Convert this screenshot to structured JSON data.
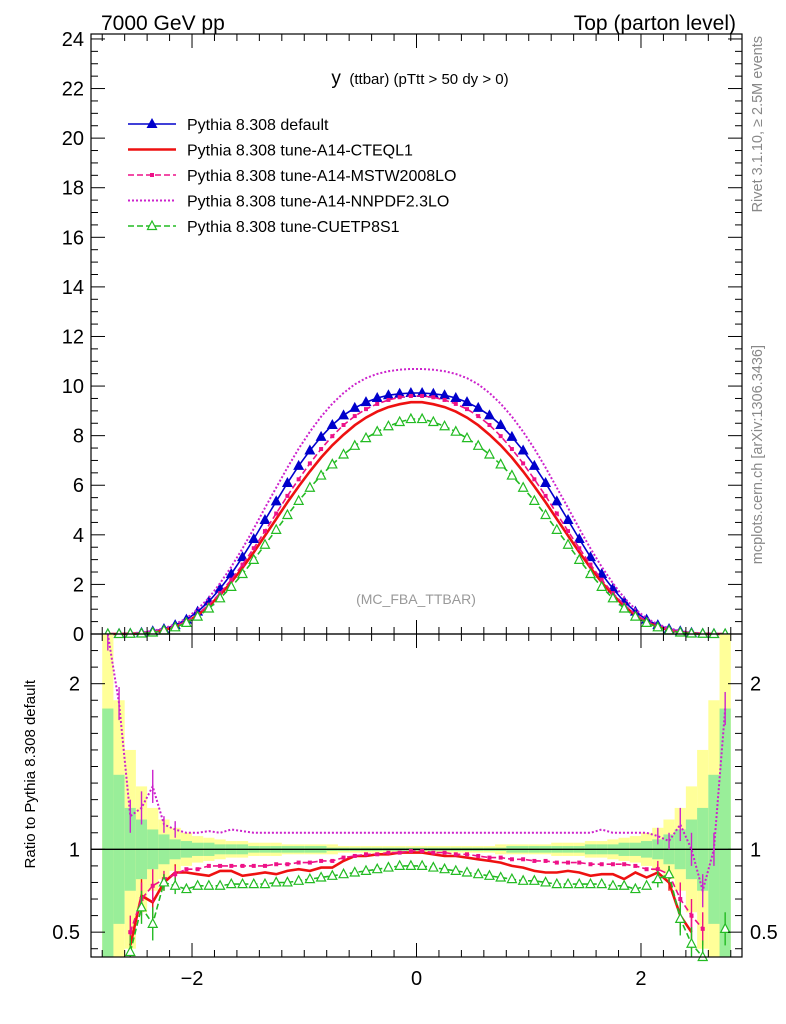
{
  "header": {
    "left": "7000 GeV pp",
    "right": "Top (parton level)"
  },
  "side_labels": {
    "rivet": "Rivet 3.1.10, ≥ 2.5M events",
    "mcplots": "mcplots.cern.ch [arXiv:1306.3436]"
  },
  "chart_data": [
    {
      "type": "line",
      "title": "y (ttbar) (pTtt > 50 dy > 0)",
      "title_main": "y",
      "title_sub": "(ttbar) (pTtt > 50 dy > 0)",
      "watermark": "(MC_FBA_TTBAR)",
      "xlim": [
        -2.9,
        2.9
      ],
      "ylim": [
        0,
        24.2
      ],
      "yticks": [
        0,
        2,
        4,
        6,
        8,
        10,
        12,
        14,
        16,
        18,
        20,
        22,
        24
      ],
      "legend_position": "top-left",
      "x": [
        -2.75,
        -2.65,
        -2.55,
        -2.45,
        -2.35,
        -2.25,
        -2.15,
        -2.05,
        -1.95,
        -1.85,
        -1.75,
        -1.65,
        -1.55,
        -1.45,
        -1.35,
        -1.25,
        -1.15,
        -1.05,
        -0.95,
        -0.85,
        -0.75,
        -0.65,
        -0.55,
        -0.45,
        -0.35,
        -0.25,
        -0.15,
        -0.05,
        0.05,
        0.15,
        0.25,
        0.35,
        0.45,
        0.55,
        0.65,
        0.75,
        0.85,
        0.95,
        1.05,
        1.15,
        1.25,
        1.35,
        1.45,
        1.55,
        1.65,
        1.75,
        1.85,
        1.95,
        2.05,
        2.15,
        2.25,
        2.35,
        2.45,
        2.55,
        2.65,
        2.75
      ],
      "series": [
        {
          "name": "Pythia 8.308 default",
          "color": "#0000cc",
          "style": "solid-triangle",
          "values": [
            0.0,
            0.01,
            0.02,
            0.05,
            0.11,
            0.2,
            0.36,
            0.58,
            0.9,
            1.31,
            1.83,
            2.42,
            3.1,
            3.83,
            4.6,
            5.35,
            6.09,
            6.78,
            7.4,
            7.95,
            8.43,
            8.82,
            9.12,
            9.35,
            9.52,
            9.63,
            9.69,
            9.72,
            9.72,
            9.69,
            9.63,
            9.52,
            9.35,
            9.12,
            8.82,
            8.43,
            7.95,
            7.4,
            6.78,
            6.09,
            5.35,
            4.6,
            3.83,
            3.1,
            2.42,
            1.83,
            1.31,
            0.9,
            0.58,
            0.36,
            0.2,
            0.11,
            0.05,
            0.02,
            0.01,
            0.0
          ]
        },
        {
          "name": "Pythia 8.308 tune-A14-CTEQL1",
          "color": "#ee1111",
          "style": "solid",
          "values": [
            0.0,
            0.0,
            0.01,
            0.03,
            0.07,
            0.16,
            0.29,
            0.48,
            0.76,
            1.13,
            1.58,
            2.09,
            2.67,
            3.3,
            3.97,
            4.64,
            5.31,
            5.95,
            6.56,
            7.12,
            7.61,
            8.04,
            8.42,
            8.73,
            8.97,
            9.15,
            9.27,
            9.35,
            9.35,
            9.27,
            9.15,
            8.97,
            8.73,
            8.42,
            8.04,
            7.61,
            7.12,
            6.56,
            5.95,
            5.31,
            4.64,
            3.97,
            3.3,
            2.67,
            2.09,
            1.58,
            1.13,
            0.76,
            0.48,
            0.29,
            0.16,
            0.07,
            0.03,
            0.01,
            0.0,
            0.0
          ]
        },
        {
          "name": "Pythia 8.308 tune-A14-MSTW2008LO",
          "color": "#ee1188",
          "style": "dashed-square",
          "values": [
            0.0,
            0.0,
            0.01,
            0.03,
            0.08,
            0.16,
            0.31,
            0.51,
            0.8,
            1.18,
            1.65,
            2.19,
            2.8,
            3.46,
            4.15,
            4.86,
            5.57,
            6.24,
            6.88,
            7.46,
            7.98,
            8.43,
            8.79,
            9.07,
            9.28,
            9.44,
            9.55,
            9.6,
            9.6,
            9.55,
            9.44,
            9.28,
            9.07,
            8.79,
            8.43,
            7.98,
            7.46,
            6.88,
            6.24,
            5.57,
            4.86,
            4.15,
            3.46,
            2.8,
            2.19,
            1.65,
            1.18,
            0.8,
            0.51,
            0.31,
            0.16,
            0.08,
            0.03,
            0.01,
            0.0,
            0.0
          ]
        },
        {
          "name": "Pythia 8.308 tune-A14-NNPDF2.3LO",
          "color": "#cc22cc",
          "style": "dotted",
          "values": [
            0.0,
            0.02,
            0.03,
            0.06,
            0.13,
            0.23,
            0.4,
            0.63,
            1.0,
            1.46,
            2.05,
            2.71,
            3.45,
            4.25,
            5.09,
            5.9,
            6.71,
            7.47,
            8.16,
            8.77,
            9.29,
            9.72,
            10.07,
            10.32,
            10.49,
            10.6,
            10.66,
            10.69,
            10.69,
            10.66,
            10.6,
            10.49,
            10.32,
            10.07,
            9.72,
            9.29,
            8.77,
            8.16,
            7.47,
            6.71,
            5.9,
            5.09,
            4.25,
            3.45,
            2.71,
            2.05,
            1.46,
            1.0,
            0.63,
            0.4,
            0.23,
            0.13,
            0.06,
            0.03,
            0.02,
            0.0
          ]
        },
        {
          "name": "Pythia 8.308 tune-CUETP8S1",
          "color": "#22bb22",
          "style": "dashed-open-triangle",
          "values": [
            0.0,
            0.0,
            0.01,
            0.02,
            0.06,
            0.14,
            0.27,
            0.45,
            0.7,
            1.03,
            1.44,
            1.9,
            2.42,
            2.99,
            3.6,
            4.2,
            4.8,
            5.37,
            5.9,
            6.39,
            6.84,
            7.24,
            7.59,
            7.9,
            8.16,
            8.38,
            8.55,
            8.67,
            8.67,
            8.55,
            8.38,
            8.16,
            7.9,
            7.59,
            7.24,
            6.84,
            6.39,
            5.9,
            5.37,
            4.8,
            4.2,
            3.6,
            2.99,
            2.42,
            1.9,
            1.44,
            1.03,
            0.7,
            0.45,
            0.27,
            0.14,
            0.06,
            0.02,
            0.01,
            0.0,
            0.0
          ]
        }
      ]
    },
    {
      "type": "line",
      "ylabel": "Ratio to Pythia 8.308 default",
      "xlim": [
        -2.9,
        2.9
      ],
      "ylim": [
        0.35,
        2.3
      ],
      "xticks": [
        -2,
        0,
        2
      ],
      "yticks": [
        0.5,
        1,
        2
      ],
      "x": [
        -2.75,
        -2.65,
        -2.55,
        -2.45,
        -2.35,
        -2.25,
        -2.15,
        -2.05,
        -1.95,
        -1.85,
        -1.75,
        -1.65,
        -1.55,
        -1.45,
        -1.35,
        -1.25,
        -1.15,
        -1.05,
        -0.95,
        -0.85,
        -0.75,
        -0.65,
        -0.55,
        -0.45,
        -0.35,
        -0.25,
        -0.15,
        -0.05,
        0.05,
        0.15,
        0.25,
        0.35,
        0.45,
        0.55,
        0.65,
        0.75,
        0.85,
        0.95,
        1.05,
        1.15,
        1.25,
        1.35,
        1.45,
        1.55,
        1.65,
        1.75,
        1.85,
        1.95,
        2.05,
        2.15,
        2.25,
        2.35,
        2.45,
        2.55,
        2.65,
        2.75
      ],
      "band_inner": [
        1.85,
        1.45,
        1.25,
        1.18,
        1.12,
        1.09,
        1.06,
        1.05,
        1.04,
        1.04,
        1.03,
        1.03,
        1.03,
        1.02,
        1.02,
        1.02,
        1.02,
        1.02,
        1.02,
        1.02,
        1.01,
        1.01,
        1.01,
        1.01,
        1.01,
        1.01,
        1.01,
        1.01,
        1.01,
        1.01,
        1.01,
        1.01,
        1.01,
        1.01,
        1.01,
        1.01,
        1.02,
        1.02,
        1.02,
        1.02,
        1.02,
        1.02,
        1.02,
        1.03,
        1.03,
        1.03,
        1.04,
        1.04,
        1.05,
        1.06,
        1.09,
        1.12,
        1.18,
        1.25,
        1.45,
        1.85
      ],
      "band_outer": [
        2.3,
        1.9,
        1.6,
        1.38,
        1.25,
        1.18,
        1.13,
        1.1,
        1.08,
        1.07,
        1.06,
        1.05,
        1.05,
        1.04,
        1.04,
        1.04,
        1.03,
        1.03,
        1.03,
        1.03,
        1.03,
        1.02,
        1.02,
        1.02,
        1.02,
        1.02,
        1.02,
        1.02,
        1.02,
        1.02,
        1.02,
        1.02,
        1.02,
        1.02,
        1.02,
        1.03,
        1.03,
        1.03,
        1.03,
        1.03,
        1.04,
        1.04,
        1.04,
        1.05,
        1.05,
        1.06,
        1.07,
        1.08,
        1.1,
        1.13,
        1.18,
        1.25,
        1.38,
        1.6,
        1.9,
        2.3
      ],
      "series": [
        {
          "name": "Pythia 8.308 tune-A14-CTEQL1",
          "color": "#ee1111",
          "values": [
            null,
            null,
            0.42,
            0.72,
            0.68,
            0.8,
            0.86,
            0.86,
            0.85,
            0.84,
            0.87,
            0.87,
            0.84,
            0.85,
            0.86,
            0.85,
            0.87,
            0.88,
            0.87,
            0.89,
            0.89,
            0.93,
            0.96,
            0.96,
            0.97,
            0.97,
            0.98,
            0.98,
            0.98,
            0.97,
            0.96,
            0.96,
            0.95,
            0.94,
            0.93,
            0.92,
            0.9,
            0.89,
            0.87,
            0.86,
            0.86,
            0.87,
            0.86,
            0.84,
            0.85,
            0.85,
            0.82,
            0.86,
            0.83,
            0.86,
            0.8,
            0.6,
            0.5,
            null,
            null,
            null
          ]
        },
        {
          "name": "Pythia 8.308 tune-A14-MSTW2008LO",
          "color": "#ee1188",
          "values": [
            null,
            null,
            0.5,
            0.7,
            0.78,
            0.82,
            0.85,
            0.88,
            0.88,
            0.9,
            0.9,
            0.9,
            0.9,
            0.9,
            0.9,
            0.91,
            0.91,
            0.92,
            0.92,
            0.93,
            0.93,
            0.95,
            0.96,
            0.97,
            0.97,
            0.98,
            0.98,
            0.99,
            0.99,
            0.98,
            0.98,
            0.97,
            0.97,
            0.96,
            0.95,
            0.95,
            0.94,
            0.94,
            0.93,
            0.93,
            0.92,
            0.92,
            0.92,
            0.91,
            0.91,
            0.91,
            0.91,
            0.9,
            0.88,
            0.88,
            0.85,
            0.7,
            0.6,
            0.52,
            null,
            null
          ]
        },
        {
          "name": "Pythia 8.308 tune-A14-NNPDF2.3LO",
          "color": "#cc22cc",
          "values": [
            2.3,
            1.88,
            1.2,
            1.25,
            1.38,
            1.15,
            1.12,
            1.1,
            1.1,
            1.11,
            1.1,
            1.12,
            1.11,
            1.1,
            1.1,
            1.1,
            1.1,
            1.1,
            1.1,
            1.1,
            1.1,
            1.1,
            1.1,
            1.1,
            1.1,
            1.1,
            1.1,
            1.1,
            1.1,
            1.1,
            1.1,
            1.1,
            1.1,
            1.1,
            1.1,
            1.1,
            1.1,
            1.1,
            1.1,
            1.1,
            1.1,
            1.1,
            1.1,
            1.1,
            1.12,
            1.1,
            1.1,
            1.1,
            1.1,
            1.08,
            1.05,
            1.15,
            1.0,
            0.75,
            1.0,
            1.85
          ]
        },
        {
          "name": "Pythia 8.308 tune-CUETP8S1",
          "color": "#22bb22",
          "values": [
            null,
            null,
            0.38,
            0.65,
            0.55,
            0.8,
            0.78,
            0.76,
            0.78,
            0.78,
            0.78,
            0.79,
            0.79,
            0.79,
            0.79,
            0.8,
            0.8,
            0.81,
            0.82,
            0.83,
            0.84,
            0.85,
            0.86,
            0.87,
            0.88,
            0.89,
            0.9,
            0.9,
            0.9,
            0.89,
            0.88,
            0.87,
            0.86,
            0.85,
            0.84,
            0.83,
            0.82,
            0.81,
            0.81,
            0.8,
            0.79,
            0.79,
            0.79,
            0.79,
            0.79,
            0.78,
            0.78,
            0.76,
            0.78,
            0.82,
            0.85,
            0.58,
            0.43,
            0.35,
            null,
            0.52
          ]
        }
      ]
    }
  ]
}
